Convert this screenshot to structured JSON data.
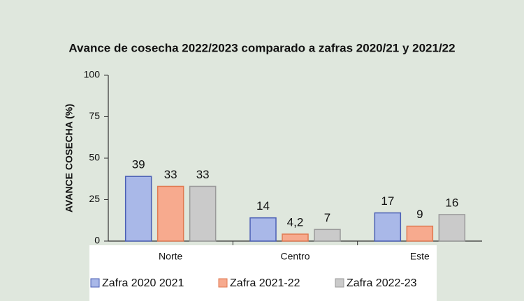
{
  "chart_data": {
    "type": "bar",
    "title": "Avance de cosecha 2022/2023 comparado a zafras 2020/21 y 2021/22",
    "y_label": "AVANCE COSECHA (%)",
    "categories": [
      "Norte",
      "Centro",
      "Este"
    ],
    "series": [
      {
        "name": "Zafra 2020 2021",
        "color": "#a9b8e8",
        "values": [
          39,
          14,
          17
        ]
      },
      {
        "name": "Zafra 2021-22",
        "color": "#f7aa8e",
        "values": [
          33,
          4.2,
          9
        ],
        "value_labels": [
          "33",
          "4,2",
          "9"
        ]
      },
      {
        "name": "Zafra 2022-23",
        "color": "#cacaca",
        "values": [
          33,
          7,
          16
        ]
      }
    ],
    "ylim": [
      0,
      100
    ],
    "yticks": [
      0,
      25,
      50,
      75,
      100
    ],
    "grid": false,
    "legend": "bottom"
  }
}
